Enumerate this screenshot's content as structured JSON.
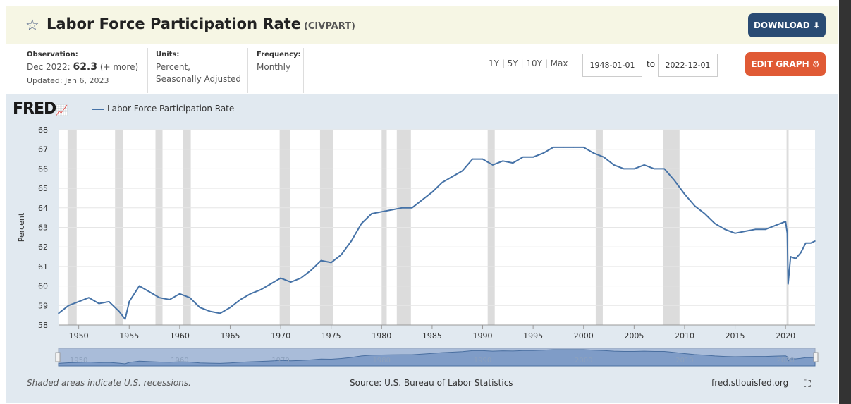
{
  "header": {
    "title": "Labor Force Participation Rate",
    "series_id": "(CIVPART)",
    "download_label": "DOWNLOAD",
    "edit_graph_label": "EDIT GRAPH"
  },
  "meta": {
    "observation_label": "Observation:",
    "observation_date": "Dec 2022:",
    "observation_value": "62.3",
    "observation_more": "(+ more)",
    "updated": "Updated: Jan 6, 2023",
    "units_label": "Units:",
    "units_line1": "Percent,",
    "units_line2": "Seasonally Adjusted",
    "frequency_label": "Frequency:",
    "frequency_value": "Monthly"
  },
  "controls": {
    "range_1y": "1Y",
    "range_5y": "5Y",
    "range_10y": "10Y",
    "range_max": "Max",
    "sep": "|",
    "start_date": "1948-01-01",
    "to_label": "to",
    "end_date": "2022-12-01"
  },
  "logo_text": "FRED",
  "footer": {
    "note": "Shaded areas indicate U.S. recessions.",
    "source": "Source: U.S. Bureau of Labor Statistics",
    "site": "fred.stlouisfed.org"
  },
  "colors": {
    "series": "#4572a7",
    "recession": "#dcdcdc",
    "download_bg": "#2a4b73",
    "edit_bg": "#e05a35"
  },
  "chart_data": {
    "type": "line",
    "title": "Labor Force Participation Rate",
    "xlabel": "",
    "ylabel": "Percent",
    "xlim": [
      1948.0,
      2022.92
    ],
    "ylim": [
      58,
      68
    ],
    "yticks": [
      58,
      59,
      60,
      61,
      62,
      63,
      64,
      65,
      66,
      67,
      68
    ],
    "xticks": [
      1950,
      1955,
      1960,
      1965,
      1970,
      1975,
      1980,
      1985,
      1990,
      1995,
      2000,
      2005,
      2010,
      2015,
      2020
    ],
    "navigator_labels": [
      "1950",
      "1960",
      "1970",
      "1980",
      "1990",
      "2000",
      "2010",
      "2020"
    ],
    "recessions": [
      [
        1948.9,
        1949.8
      ],
      [
        1953.6,
        1954.4
      ],
      [
        1957.6,
        1958.3
      ],
      [
        1960.3,
        1961.1
      ],
      [
        1969.9,
        1970.9
      ],
      [
        1973.9,
        1975.2
      ],
      [
        1980.0,
        1980.5
      ],
      [
        1981.5,
        1982.9
      ],
      [
        1990.5,
        1991.2
      ],
      [
        2001.2,
        2001.9
      ],
      [
        2007.9,
        2009.5
      ],
      [
        2020.1,
        2020.3
      ]
    ],
    "series": [
      {
        "name": "Labor Force Participation Rate",
        "points": [
          [
            1948.0,
            58.6
          ],
          [
            1949.0,
            59.0
          ],
          [
            1950.0,
            59.2
          ],
          [
            1951.0,
            59.4
          ],
          [
            1952.0,
            59.1
          ],
          [
            1953.0,
            59.2
          ],
          [
            1954.0,
            58.7
          ],
          [
            1954.6,
            58.3
          ],
          [
            1955.0,
            59.2
          ],
          [
            1956.0,
            60.0
          ],
          [
            1957.0,
            59.7
          ],
          [
            1958.0,
            59.4
          ],
          [
            1959.0,
            59.3
          ],
          [
            1960.0,
            59.6
          ],
          [
            1961.0,
            59.4
          ],
          [
            1962.0,
            58.9
          ],
          [
            1963.0,
            58.7
          ],
          [
            1964.0,
            58.6
          ],
          [
            1965.0,
            58.9
          ],
          [
            1966.0,
            59.3
          ],
          [
            1967.0,
            59.6
          ],
          [
            1968.0,
            59.8
          ],
          [
            1969.0,
            60.1
          ],
          [
            1970.0,
            60.4
          ],
          [
            1971.0,
            60.2
          ],
          [
            1972.0,
            60.4
          ],
          [
            1973.0,
            60.8
          ],
          [
            1974.0,
            61.3
          ],
          [
            1975.0,
            61.2
          ],
          [
            1976.0,
            61.6
          ],
          [
            1977.0,
            62.3
          ],
          [
            1978.0,
            63.2
          ],
          [
            1979.0,
            63.7
          ],
          [
            1980.0,
            63.8
          ],
          [
            1981.0,
            63.9
          ],
          [
            1982.0,
            64.0
          ],
          [
            1983.0,
            64.0
          ],
          [
            1984.0,
            64.4
          ],
          [
            1985.0,
            64.8
          ],
          [
            1986.0,
            65.3
          ],
          [
            1987.0,
            65.6
          ],
          [
            1988.0,
            65.9
          ],
          [
            1989.0,
            66.5
          ],
          [
            1990.0,
            66.5
          ],
          [
            1991.0,
            66.2
          ],
          [
            1992.0,
            66.4
          ],
          [
            1993.0,
            66.3
          ],
          [
            1994.0,
            66.6
          ],
          [
            1995.0,
            66.6
          ],
          [
            1996.0,
            66.8
          ],
          [
            1997.0,
            67.1
          ],
          [
            1998.0,
            67.1
          ],
          [
            1999.0,
            67.1
          ],
          [
            2000.0,
            67.1
          ],
          [
            2001.0,
            66.8
          ],
          [
            2002.0,
            66.6
          ],
          [
            2003.0,
            66.2
          ],
          [
            2004.0,
            66.0
          ],
          [
            2005.0,
            66.0
          ],
          [
            2006.0,
            66.2
          ],
          [
            2007.0,
            66.0
          ],
          [
            2008.0,
            66.0
          ],
          [
            2009.0,
            65.4
          ],
          [
            2010.0,
            64.7
          ],
          [
            2011.0,
            64.1
          ],
          [
            2012.0,
            63.7
          ],
          [
            2013.0,
            63.2
          ],
          [
            2014.0,
            62.9
          ],
          [
            2015.0,
            62.7
          ],
          [
            2016.0,
            62.8
          ],
          [
            2017.0,
            62.9
          ],
          [
            2018.0,
            62.9
          ],
          [
            2019.0,
            63.1
          ],
          [
            2020.0,
            63.3
          ],
          [
            2020.17,
            62.7
          ],
          [
            2020.25,
            60.1
          ],
          [
            2020.5,
            61.5
          ],
          [
            2021.0,
            61.4
          ],
          [
            2021.5,
            61.7
          ],
          [
            2022.0,
            62.2
          ],
          [
            2022.5,
            62.2
          ],
          [
            2022.92,
            62.3
          ]
        ]
      }
    ]
  }
}
